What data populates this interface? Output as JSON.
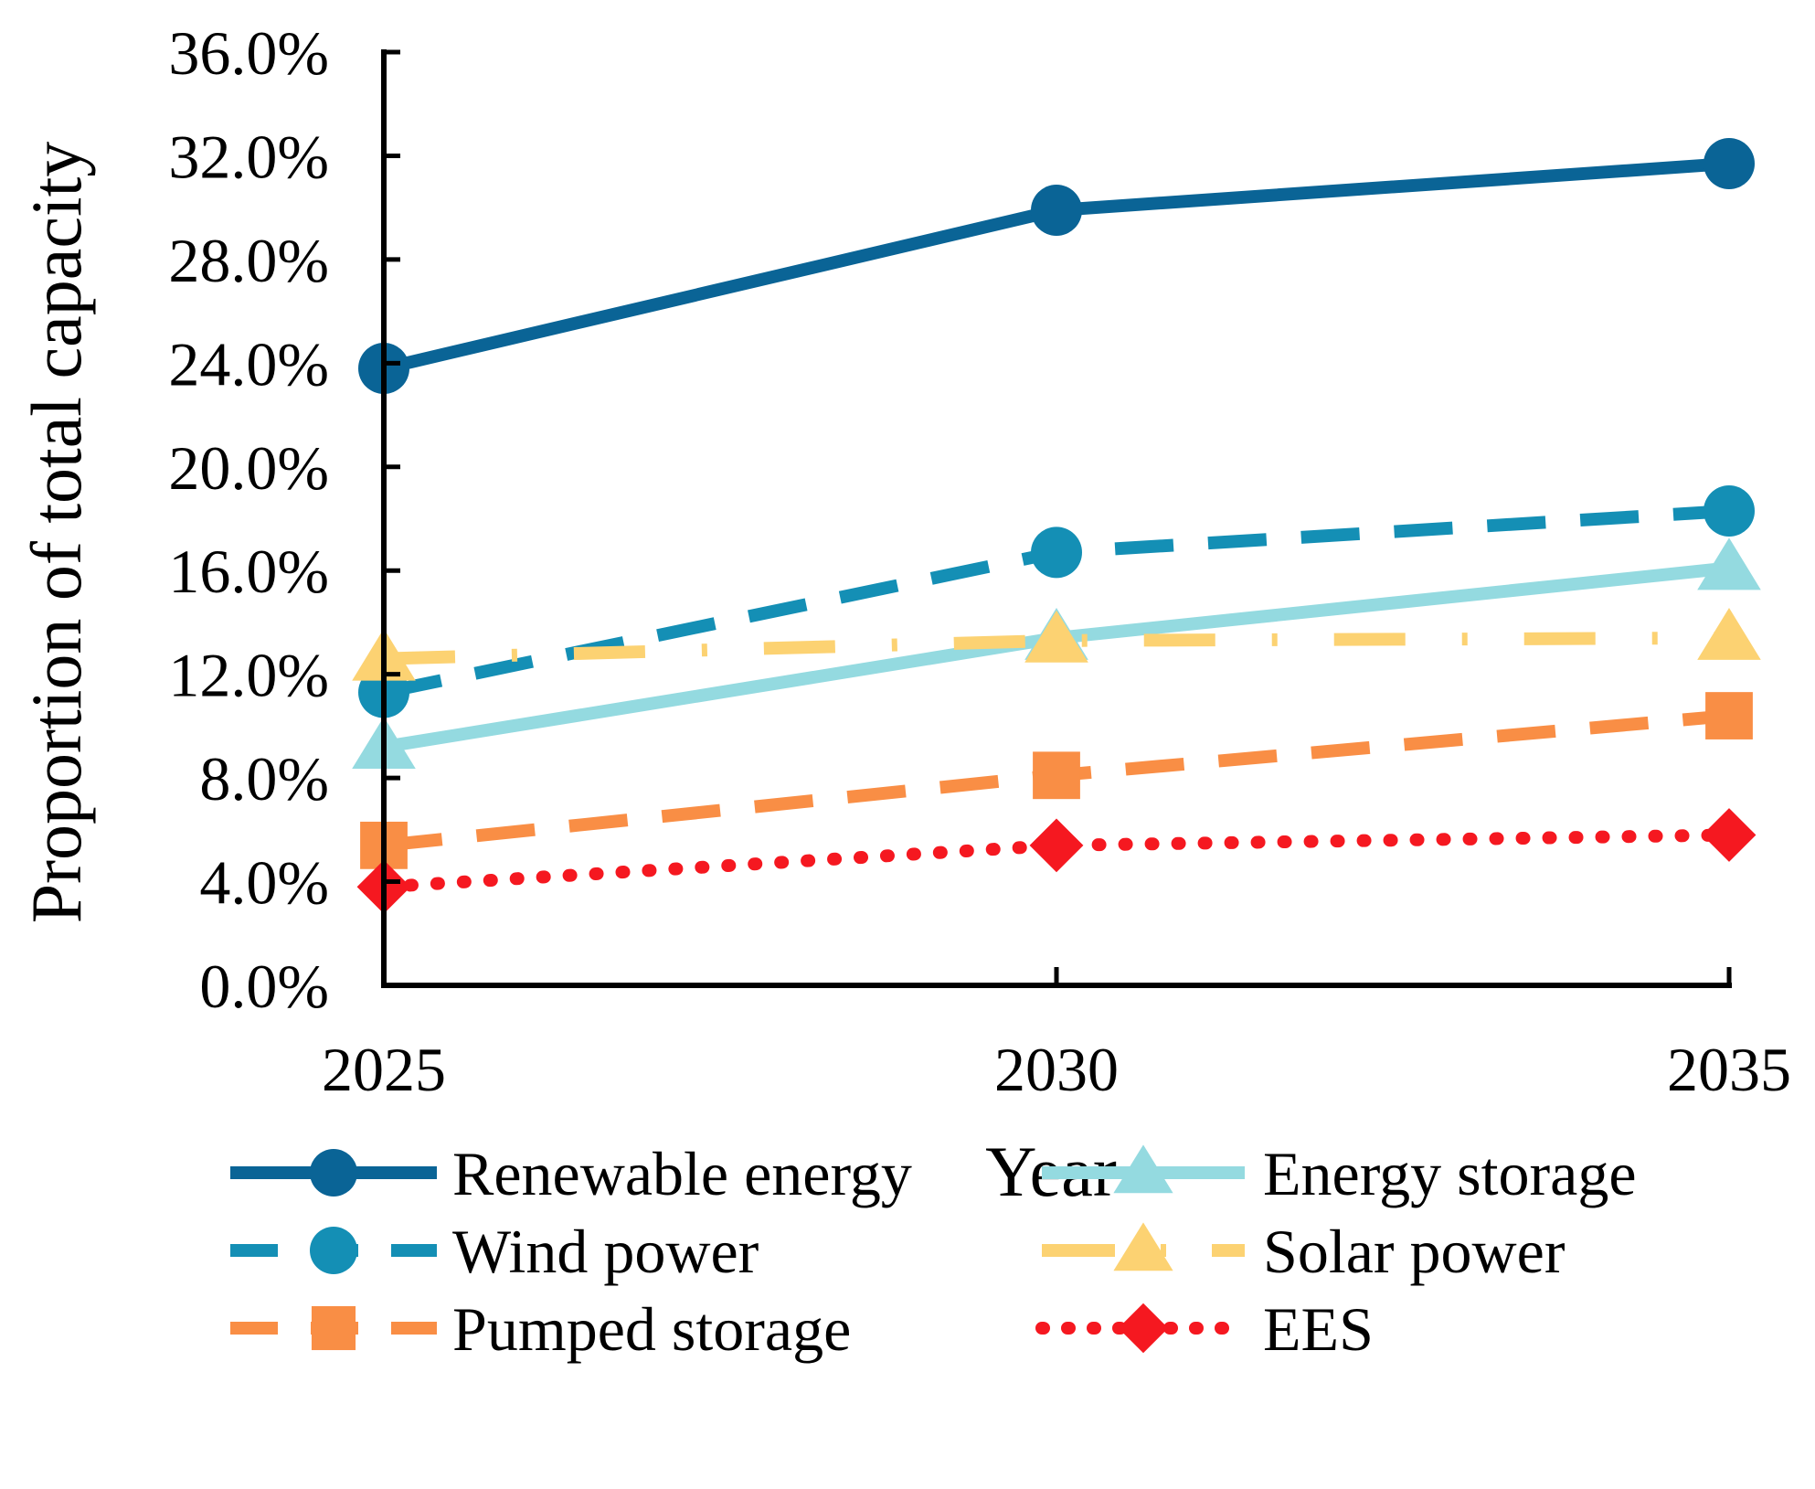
{
  "chart_data": {
    "type": "line",
    "title": "",
    "xlabel": "Year",
    "ylabel": "Proportion of total capacity",
    "categories": [
      "2025",
      "2030",
      "2035"
    ],
    "ylim": [
      0,
      36
    ],
    "yticks": [
      "0.0%",
      "4.0%",
      "8.0%",
      "12.0%",
      "16.0%",
      "20.0%",
      "24.0%",
      "28.0%",
      "32.0%",
      "36.0%"
    ],
    "grid": false,
    "legend_position": "bottom",
    "series": [
      {
        "name": "Renewable energy",
        "values": [
          23.8,
          29.9,
          31.7
        ],
        "color": "#0a6496",
        "line": "solid",
        "marker": "circle"
      },
      {
        "name": "Wind power",
        "values": [
          11.3,
          16.7,
          18.3
        ],
        "color": "#148fb5",
        "line": "dash",
        "marker": "circle"
      },
      {
        "name": "Pumped storage",
        "values": [
          5.4,
          8.1,
          10.4
        ],
        "color": "#f98e45",
        "line": "dash",
        "marker": "square"
      },
      {
        "name": "Energy storage",
        "values": [
          9.2,
          13.4,
          16.1
        ],
        "color": "#94dae0",
        "line": "solid",
        "marker": "triangle"
      },
      {
        "name": "Solar power",
        "values": [
          12.6,
          13.3,
          13.4
        ],
        "color": "#fcd272",
        "line": "dashdot",
        "marker": "triangle"
      },
      {
        "name": "EES",
        "values": [
          3.8,
          5.4,
          5.8
        ],
        "color": "#f51820",
        "line": "dot",
        "marker": "diamond"
      }
    ]
  }
}
